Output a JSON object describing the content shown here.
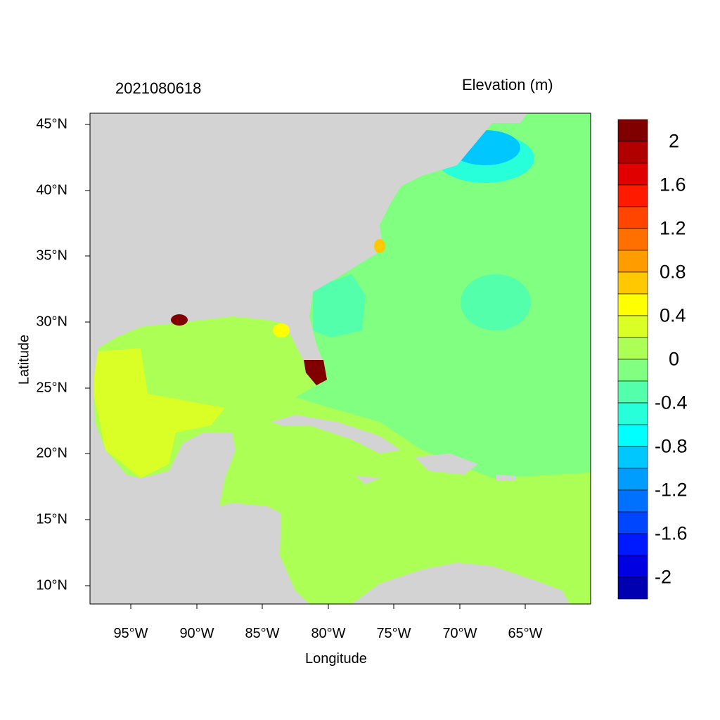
{
  "title_left": "2021080618",
  "title_right": "Elevation (m)",
  "xlabel": "Longitude",
  "ylabel": "Latitude",
  "x_ticks": [
    "95°W",
    "90°W",
    "85°W",
    "80°W",
    "75°W",
    "70°W",
    "65°W"
  ],
  "y_ticks": [
    "45°N",
    "40°N",
    "35°N",
    "30°N",
    "25°N",
    "20°N",
    "15°N",
    "10°N"
  ],
  "colorbar": {
    "labels": [
      "2",
      "1.6",
      "1.2",
      "0.8",
      "0.4",
      "0",
      "-0.4",
      "-0.8",
      "-1.2",
      "-1.6",
      "-2"
    ],
    "colors": [
      "#800000",
      "#B00000",
      "#E00000",
      "#FF1A00",
      "#FF4500",
      "#FF7000",
      "#FF9D00",
      "#FFC800",
      "#FFFF00",
      "#D9FF26",
      "#ACFF54",
      "#80FF80",
      "#54FFAC",
      "#26FFD9",
      "#00FFFF",
      "#00C8FF",
      "#009DFF",
      "#0070FF",
      "#0045FF",
      "#001AFF",
      "#0000E0",
      "#0000B0"
    ]
  },
  "map": {
    "land_color": "#D3D3D3",
    "lon_range": [
      -98,
      -60
    ],
    "lat_range": [
      8.6,
      45.8
    ]
  }
}
